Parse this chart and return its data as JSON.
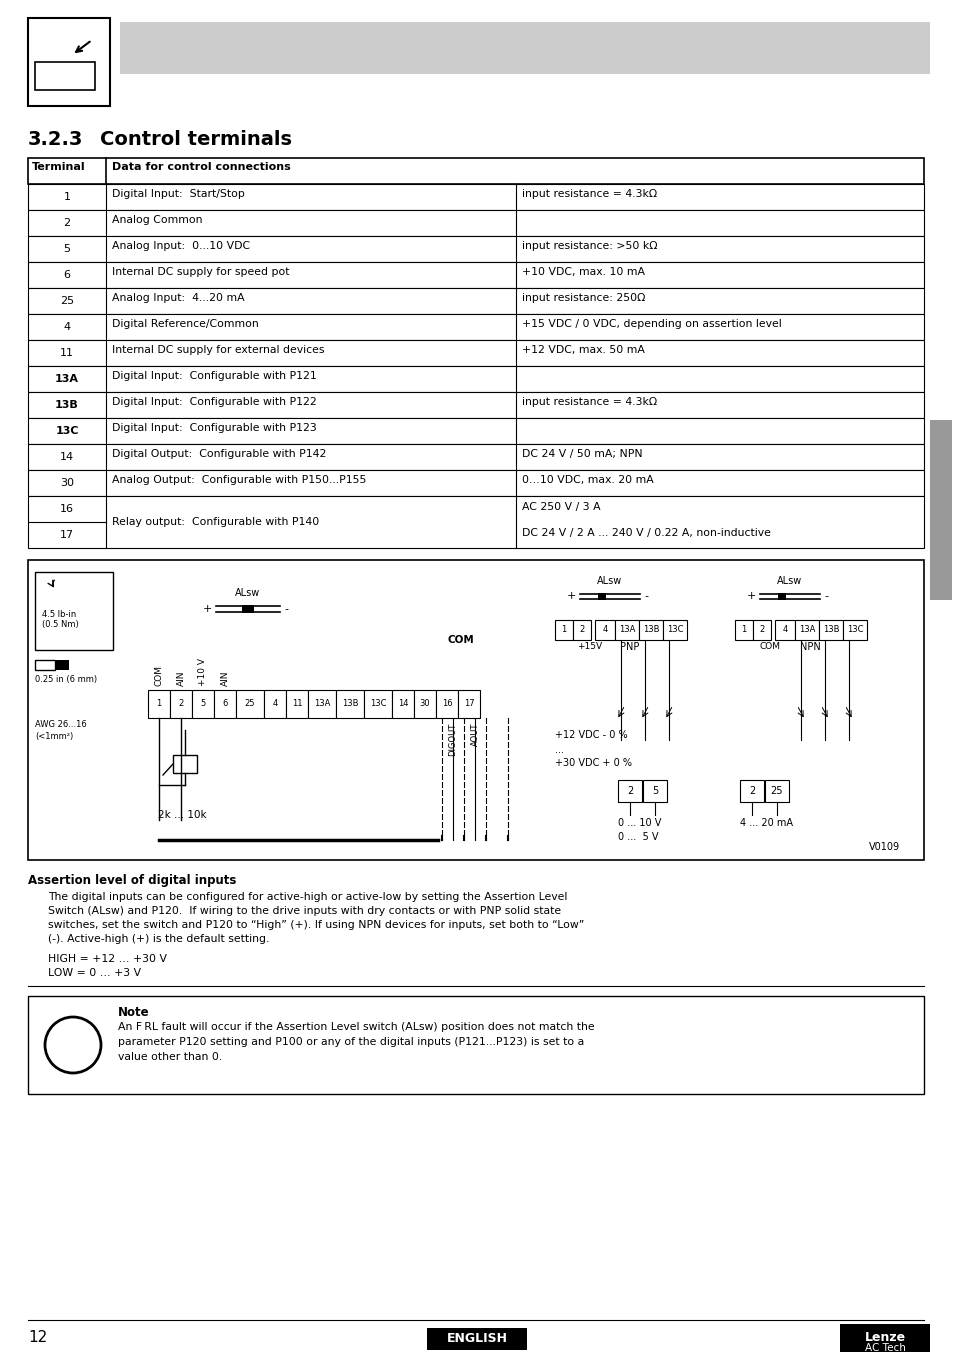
{
  "page_bg": "#ffffff",
  "header_gray": "#cccccc",
  "section_title_num": "3.2.3",
  "section_title_text": "Control terminals",
  "table_header_col1": "Terminal",
  "table_header_col2": "Data for control connections",
  "rows": [
    [
      "1",
      "Digital Input:  Start/Stop",
      "input resistance = 4.3kΩ"
    ],
    [
      "2",
      "Analog Common",
      ""
    ],
    [
      "5",
      "Analog Input:  0...10 VDC",
      "input resistance: >50 kΩ"
    ],
    [
      "6",
      "Internal DC supply for speed pot",
      "+10 VDC, max. 10 mA"
    ],
    [
      "25",
      "Analog Input:  4...20 mA",
      "input resistance: 250Ω"
    ],
    [
      "4",
      "Digital Reference/Common",
      "+15 VDC / 0 VDC, depending on assertion level"
    ],
    [
      "11",
      "Internal DC supply for external devices",
      "+12 VDC, max. 50 mA"
    ],
    [
      "13A",
      "Digital Input:  Configurable with P121",
      ""
    ],
    [
      "13B",
      "Digital Input:  Configurable with P122",
      "input resistance = 4.3kΩ"
    ],
    [
      "13C",
      "Digital Input:  Configurable with P123",
      ""
    ],
    [
      "14",
      "Digital Output:  Configurable with P142",
      "DC 24 V / 50 mA; NPN"
    ],
    [
      "30",
      "Analog Output:  Configurable with P150...P155",
      "0…10 VDC, max. 20 mA"
    ],
    [
      "16",
      "Relay output:  Configurable with P140",
      "AC 250 V / 3 A"
    ],
    [
      "17",
      "",
      "DC 24 V / 2 A ... 240 V / 0.22 A, non-inductive"
    ]
  ],
  "bold_terms": [
    "13A",
    "13B",
    "13C"
  ],
  "assertion_title": "Assertion level of digital inputs",
  "assertion_lines": [
    "The digital inputs can be configured for active-high or active-low by setting the Assertion Level",
    "Switch (ALsw) and P120.  If wiring to the drive inputs with dry contacts or with PNP solid state",
    "switches, set the switch and P120 to “High” (+). If using NPN devices for inputs, set both to “Low”",
    "(-). Active-high (+) is the default setting."
  ],
  "high_line": "HIGH = +12 … +30 V",
  "low_line": "LOW = 0 … +3 V",
  "note_title": "Note",
  "note_lines": [
    "An F RL fault will occur if the Assertion Level switch (ALsw) position does not match the",
    "parameter P120 setting and P100 or any of the digital inputs (P121...P123) is set to a",
    "value other than 0."
  ],
  "page_number": "12",
  "english_label": "ENGLISH",
  "lenze_line1": "Lenze",
  "lenze_line2": "AC Tech",
  "gray_sidebar_color": "#999999"
}
